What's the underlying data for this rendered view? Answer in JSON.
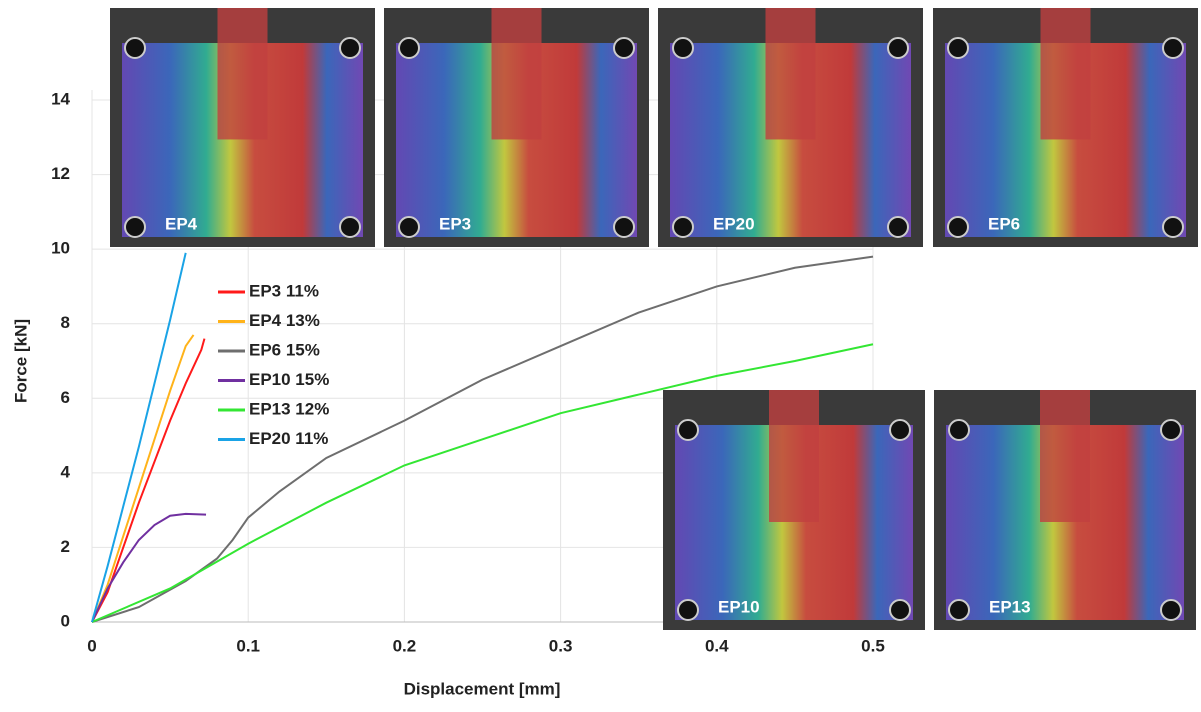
{
  "chart_data": {
    "type": "line",
    "x_label": "Displacement [mm]",
    "y_label": "Force [kN]",
    "xlim": [
      0,
      0.5
    ],
    "ylim": [
      0,
      14
    ],
    "xticks": [
      0,
      0.1,
      0.2,
      0.3,
      0.4,
      0.5
    ],
    "yticks": [
      0,
      2,
      4,
      6,
      8,
      10,
      12,
      14
    ],
    "grid": true,
    "legend": "upper left",
    "series": [
      {
        "name": "EP3 11%",
        "color": "#ff1a1a",
        "x": [
          0,
          0.01,
          0.02,
          0.03,
          0.04,
          0.05,
          0.06,
          0.07,
          0.072
        ],
        "values": [
          0,
          0.8,
          2,
          3.2,
          4.3,
          5.4,
          6.4,
          7.3,
          7.6
        ]
      },
      {
        "name": "EP4 13%",
        "color": "#ffb31a",
        "x": [
          0,
          0.01,
          0.02,
          0.03,
          0.04,
          0.05,
          0.06,
          0.065
        ],
        "values": [
          0,
          1,
          2.3,
          3.6,
          4.9,
          6.2,
          7.4,
          7.7
        ]
      },
      {
        "name": "EP6 15%",
        "color": "#6e6e6e",
        "x": [
          0,
          0.03,
          0.06,
          0.08,
          0.09,
          0.1,
          0.12,
          0.15,
          0.2,
          0.25,
          0.3,
          0.35,
          0.4,
          0.45,
          0.5
        ],
        "values": [
          0,
          0.4,
          1.1,
          1.7,
          2.2,
          2.8,
          3.5,
          4.4,
          5.4,
          6.5,
          7.4,
          8.3,
          9.0,
          9.5,
          9.8
        ]
      },
      {
        "name": "EP10 15%",
        "color": "#7030a0",
        "x": [
          0,
          0.01,
          0.02,
          0.03,
          0.04,
          0.05,
          0.06,
          0.073
        ],
        "values": [
          0,
          0.9,
          1.6,
          2.2,
          2.6,
          2.85,
          2.9,
          2.88
        ]
      },
      {
        "name": "EP13 12%",
        "color": "#33e633",
        "x": [
          0,
          0.05,
          0.1,
          0.15,
          0.2,
          0.25,
          0.3,
          0.35,
          0.4,
          0.45,
          0.5
        ],
        "values": [
          0,
          0.9,
          2.1,
          3.2,
          4.2,
          4.9,
          5.6,
          6.1,
          6.6,
          7.0,
          7.45
        ]
      },
      {
        "name": "EP20 11%",
        "color": "#1aa3e6",
        "x": [
          0,
          0.01,
          0.02,
          0.03,
          0.04,
          0.05,
          0.06
        ],
        "values": [
          0,
          1.5,
          3.1,
          4.7,
          6.4,
          8.1,
          9.9
        ]
      }
    ],
    "annotations": [
      "EP4",
      "EP3",
      "EP20",
      "EP6",
      "EP10",
      "EP13"
    ]
  }
}
